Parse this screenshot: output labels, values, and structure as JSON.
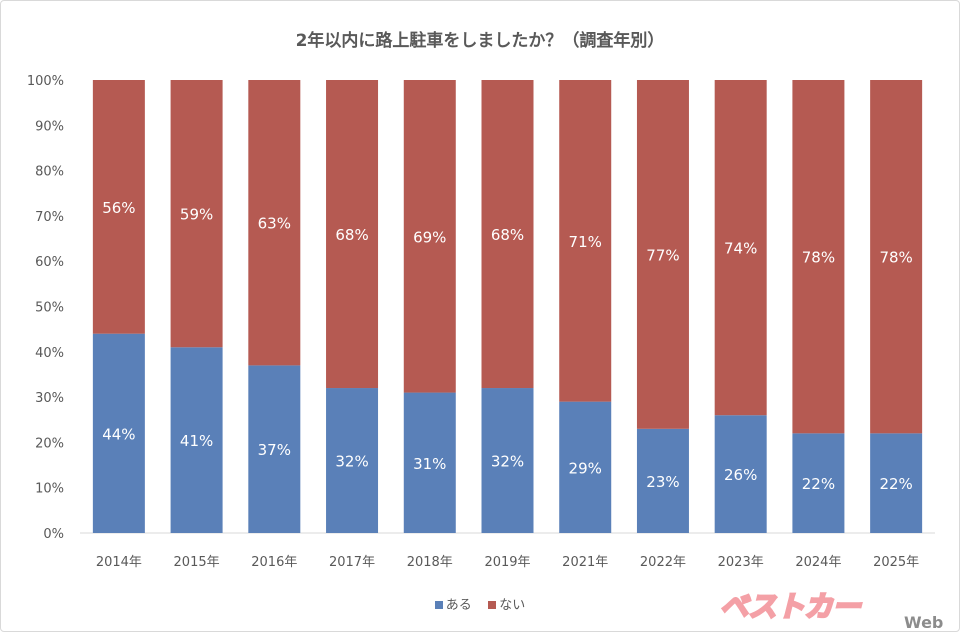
{
  "chart_data": {
    "type": "bar",
    "stacked": "percent",
    "title": "2年以内に路上駐車をしましたか？（調査年別）",
    "categories": [
      "2014年",
      "2015年",
      "2016年",
      "2017年",
      "2018年",
      "2019年",
      "2021年",
      "2022年",
      "2023年",
      "2024年",
      "2025年"
    ],
    "series": [
      {
        "name": "ある",
        "color": "#5a80b8",
        "values": [
          44,
          41,
          37,
          32,
          31,
          32,
          29,
          23,
          26,
          22,
          22
        ]
      },
      {
        "name": "ない",
        "color": "#b55a52",
        "values": [
          56,
          59,
          63,
          68,
          69,
          68,
          71,
          77,
          74,
          78,
          78
        ]
      }
    ],
    "ylim": [
      0,
      100
    ],
    "yticks": [
      "0%",
      "10%",
      "20%",
      "30%",
      "40%",
      "50%",
      "60%",
      "70%",
      "80%",
      "90%",
      "100%"
    ],
    "grid": false,
    "legend": "bottom"
  },
  "logo": {
    "text": "ベストカー",
    "sub": "Web"
  }
}
